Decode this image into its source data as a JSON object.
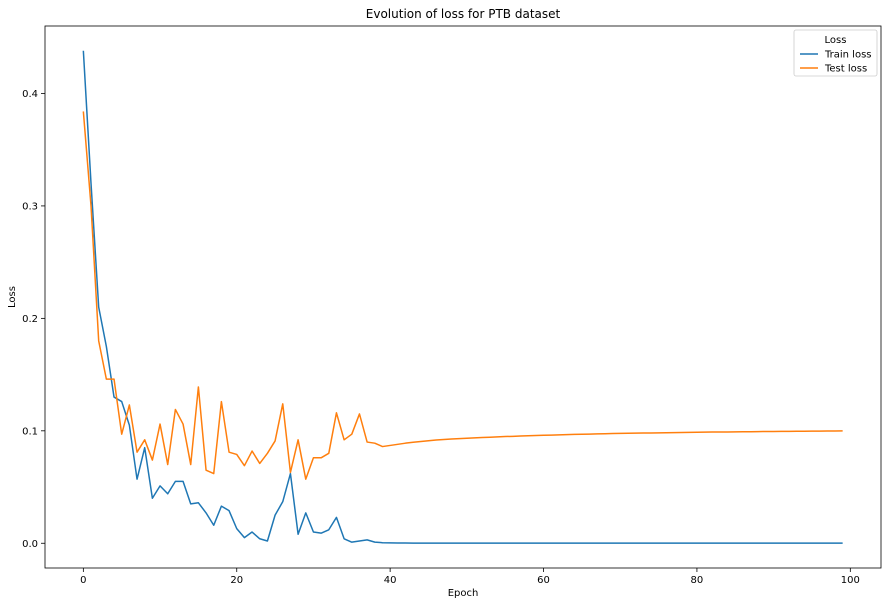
{
  "chart_data": {
    "type": "line",
    "title": "Evolution of loss for PTB dataset",
    "xlabel": "Epoch",
    "ylabel": "Loss",
    "xlim": [
      -5,
      104
    ],
    "ylim": [
      -0.022,
      0.46
    ],
    "xticks": [
      0,
      20,
      40,
      60,
      80,
      100
    ],
    "yticks": [
      0.0,
      0.1,
      0.2,
      0.3,
      0.4
    ],
    "grid": false,
    "legend": {
      "title": "Loss",
      "position": "top-right"
    },
    "series": [
      {
        "name": "Train loss",
        "color": "#1f77b4",
        "values": [
          0.438,
          0.32,
          0.21,
          0.175,
          0.13,
          0.126,
          0.105,
          0.057,
          0.085,
          0.04,
          0.051,
          0.044,
          0.055,
          0.055,
          0.035,
          0.036,
          0.027,
          0.016,
          0.033,
          0.029,
          0.013,
          0.005,
          0.01,
          0.004,
          0.002,
          0.025,
          0.037,
          0.062,
          0.008,
          0.027,
          0.01,
          0.009,
          0.012,
          0.023,
          0.004,
          0.001,
          0.002,
          0.003,
          0.001,
          0.0005,
          0.0003,
          0.0002,
          0.0002,
          0.0001,
          0.0001,
          0.0001,
          0.0001,
          0.0001,
          0.0001,
          0.0001,
          0.0001,
          0.0001,
          0.0001,
          0.0001,
          0.0001,
          0.0001,
          0.0001,
          0.0001,
          0.0001,
          0.0001,
          0.0001,
          0.0001,
          0.0001,
          0.0001,
          0.0001,
          0.0001,
          0.0001,
          0.0001,
          0.0001,
          0.0001,
          0.0001,
          0.0001,
          0.0001,
          0.0001,
          0.0001,
          0.0001,
          0.0001,
          0.0001,
          0.0001,
          0.0001,
          0.0001,
          0.0001,
          0.0001,
          0.0001,
          0.0001,
          0.0001,
          0.0001,
          0.0001,
          0.0001,
          0.0001,
          0.0001,
          0.0001,
          0.0001,
          0.0001,
          0.0001,
          0.0001,
          0.0001,
          0.0001,
          0.0001,
          0.0001
        ]
      },
      {
        "name": "Test loss",
        "color": "#ff7f0e",
        "values": [
          0.384,
          0.3,
          0.18,
          0.146,
          0.146,
          0.097,
          0.123,
          0.081,
          0.092,
          0.074,
          0.106,
          0.07,
          0.119,
          0.106,
          0.07,
          0.139,
          0.065,
          0.062,
          0.126,
          0.081,
          0.079,
          0.069,
          0.082,
          0.071,
          0.08,
          0.091,
          0.124,
          0.063,
          0.092,
          0.057,
          0.076,
          0.076,
          0.08,
          0.116,
          0.092,
          0.097,
          0.115,
          0.09,
          0.089,
          0.086,
          0.087,
          0.088,
          0.089,
          0.0898,
          0.0905,
          0.0912,
          0.0918,
          0.0923,
          0.0927,
          0.0931,
          0.0934,
          0.0937,
          0.094,
          0.0943,
          0.0946,
          0.0949,
          0.0951,
          0.0954,
          0.0956,
          0.0958,
          0.096,
          0.0962,
          0.0964,
          0.0966,
          0.0968,
          0.097,
          0.0971,
          0.0973,
          0.0974,
          0.0976,
          0.0977,
          0.0978,
          0.0979,
          0.098,
          0.0981,
          0.0982,
          0.0983,
          0.0984,
          0.0985,
          0.0986,
          0.0987,
          0.0988,
          0.0989,
          0.099,
          0.099,
          0.0991,
          0.0992,
          0.0992,
          0.0993,
          0.0994,
          0.0994,
          0.0995,
          0.0995,
          0.0996,
          0.0996,
          0.0997,
          0.0997,
          0.0998,
          0.0998,
          0.0999
        ]
      }
    ]
  }
}
